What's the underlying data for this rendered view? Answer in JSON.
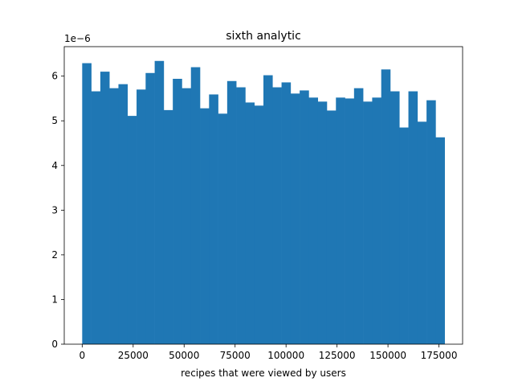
{
  "chart_data": {
    "type": "bar",
    "title": "sixth analytic",
    "xlabel": "recipes that were viewed by users",
    "ylabel": "",
    "y_offset_label": "1e−6",
    "y_scale": 1e-06,
    "color": "#1f77b4",
    "grid": false,
    "legend": "none",
    "xlim": [
      -8800,
      186600
    ],
    "ylim": [
      0,
      6.66
    ],
    "x_ticks": [
      0,
      25000,
      50000,
      75000,
      100000,
      125000,
      150000,
      175000
    ],
    "x_tick_labels": [
      "0",
      "25000",
      "50000",
      "75000",
      "100000",
      "125000",
      "150000",
      "175000"
    ],
    "y_ticks": [
      0,
      1,
      2,
      3,
      4,
      5,
      6
    ],
    "y_tick_labels": [
      "0",
      "1",
      "2",
      "3",
      "4",
      "5",
      "6"
    ],
    "bins": {
      "start": 0,
      "end": 177800,
      "count": 40,
      "values": [
        6.29,
        5.66,
        6.1,
        5.73,
        5.82,
        5.11,
        5.7,
        6.07,
        6.34,
        5.24,
        5.94,
        5.73,
        6.2,
        5.28,
        5.59,
        5.16,
        5.89,
        5.75,
        5.41,
        5.34,
        6.02,
        5.75,
        5.86,
        5.61,
        5.68,
        5.52,
        5.43,
        5.23,
        5.52,
        5.5,
        5.73,
        5.43,
        5.52,
        6.15,
        5.66,
        4.85,
        5.66,
        4.98,
        5.46,
        4.63
      ]
    }
  }
}
